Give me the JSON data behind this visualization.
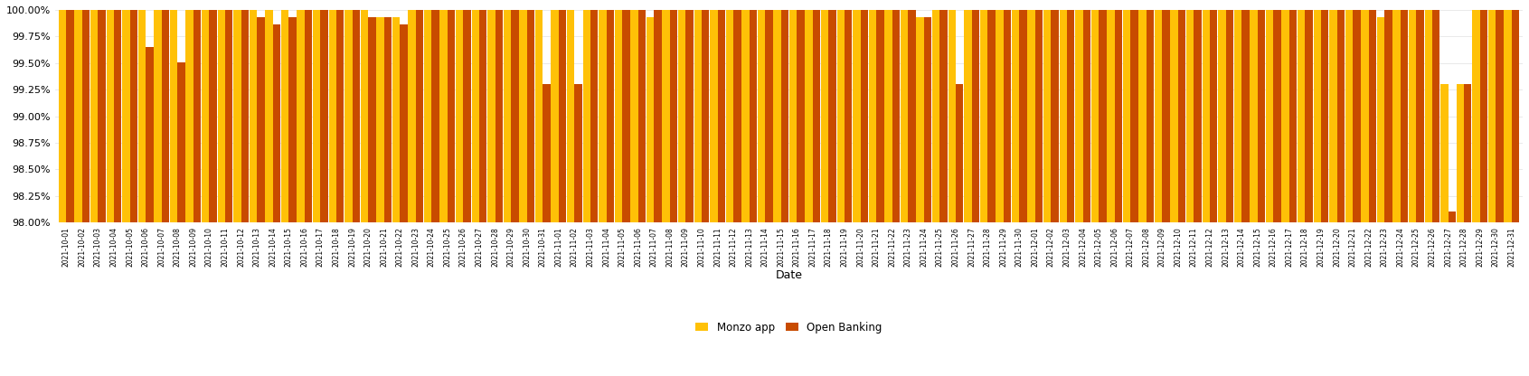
{
  "monzo_app": [
    100.0,
    100.0,
    100.0,
    100.0,
    100.0,
    100.0,
    100.0,
    100.0,
    100.0,
    100.0,
    100.0,
    100.0,
    100.0,
    100.0,
    100.0,
    100.0,
    100.0,
    100.0,
    100.0,
    100.0,
    99.93,
    99.93,
    100.0,
    100.0,
    100.0,
    100.0,
    100.0,
    100.0,
    100.0,
    100.0,
    100.0,
    100.0,
    100.0,
    100.0,
    100.0,
    100.0,
    100.0,
    99.93,
    100.0,
    100.0,
    100.0,
    100.0,
    100.0,
    100.0,
    100.0,
    100.0,
    100.0,
    100.0,
    100.0,
    100.0,
    100.0,
    100.0,
    100.0,
    100.0,
    99.93,
    100.0,
    100.0,
    100.0,
    100.0,
    100.0,
    100.0,
    100.0,
    100.0,
    100.0,
    100.0,
    100.0,
    100.0,
    100.0,
    100.0,
    100.0,
    100.0,
    100.0,
    100.0,
    100.0,
    100.0,
    100.0,
    100.0,
    100.0,
    100.0,
    100.0,
    100.0,
    100.0,
    100.0,
    99.93,
    100.0,
    100.0,
    100.0,
    99.3,
    99.3,
    100.0,
    100.0,
    100.0
  ],
  "open_banking": [
    100.0,
    100.0,
    100.0,
    100.0,
    100.0,
    99.65,
    100.0,
    99.51,
    100.0,
    100.0,
    100.0,
    100.0,
    99.93,
    99.86,
    99.93,
    100.0,
    100.0,
    100.0,
    100.0,
    99.93,
    99.93,
    99.86,
    100.0,
    100.0,
    100.0,
    100.0,
    100.0,
    100.0,
    100.0,
    100.0,
    99.3,
    100.0,
    99.3,
    100.0,
    100.0,
    100.0,
    100.0,
    100.0,
    100.0,
    100.0,
    100.0,
    100.0,
    100.0,
    100.0,
    100.0,
    100.0,
    100.0,
    100.0,
    100.0,
    100.0,
    100.0,
    100.0,
    100.0,
    100.0,
    99.93,
    100.0,
    99.3,
    100.0,
    100.0,
    100.0,
    100.0,
    100.0,
    100.0,
    100.0,
    100.0,
    100.0,
    100.0,
    100.0,
    100.0,
    100.0,
    100.0,
    100.0,
    100.0,
    100.0,
    100.0,
    100.0,
    100.0,
    100.0,
    100.0,
    100.0,
    100.0,
    100.0,
    100.0,
    100.0,
    100.0,
    100.0,
    100.0,
    98.1,
    99.3,
    100.0,
    100.0,
    100.0
  ],
  "dates": [
    "2021-10-01",
    "2021-10-02",
    "2021-10-03",
    "2021-10-04",
    "2021-10-05",
    "2021-10-06",
    "2021-10-07",
    "2021-10-08",
    "2021-10-09",
    "2021-10-10",
    "2021-10-11",
    "2021-10-12",
    "2021-10-13",
    "2021-10-14",
    "2021-10-15",
    "2021-10-16",
    "2021-10-17",
    "2021-10-18",
    "2021-10-19",
    "2021-10-20",
    "2021-10-21",
    "2021-10-22",
    "2021-10-23",
    "2021-10-24",
    "2021-10-25",
    "2021-10-26",
    "2021-10-27",
    "2021-10-28",
    "2021-10-29",
    "2021-10-30",
    "2021-10-31",
    "2021-11-01",
    "2021-11-02",
    "2021-11-03",
    "2021-11-04",
    "2021-11-05",
    "2021-11-06",
    "2021-11-07",
    "2021-11-08",
    "2021-11-09",
    "2021-11-10",
    "2021-11-11",
    "2021-11-12",
    "2021-11-13",
    "2021-11-14",
    "2021-11-15",
    "2021-11-16",
    "2021-11-17",
    "2021-11-18",
    "2021-11-19",
    "2021-11-20",
    "2021-11-21",
    "2021-11-22",
    "2021-11-23",
    "2021-11-24",
    "2021-11-25",
    "2021-11-26",
    "2021-11-27",
    "2021-11-28",
    "2021-11-29",
    "2021-11-30",
    "2021-12-01",
    "2021-12-02",
    "2021-12-03",
    "2021-12-04",
    "2021-12-05",
    "2021-12-06",
    "2021-12-07",
    "2021-12-08",
    "2021-12-09",
    "2021-12-10",
    "2021-12-11",
    "2021-12-12",
    "2021-12-13",
    "2021-12-14",
    "2021-12-15",
    "2021-12-16",
    "2021-12-17",
    "2021-12-18",
    "2021-12-19",
    "2021-12-20",
    "2021-12-21",
    "2021-12-22",
    "2021-12-23",
    "2021-12-24",
    "2021-12-25",
    "2021-12-26",
    "2021-12-27",
    "2021-12-28",
    "2021-12-29",
    "2021-12-30",
    "2021-12-31"
  ],
  "monzo_color": "#FFC107",
  "open_banking_color": "#C84B00",
  "background_color": "#FFFFFF",
  "xlabel": "Date",
  "ylim_min": 98.0,
  "ylim_max": 100.0,
  "legend_monzo": "Monzo app",
  "legend_ob": "Open Banking"
}
